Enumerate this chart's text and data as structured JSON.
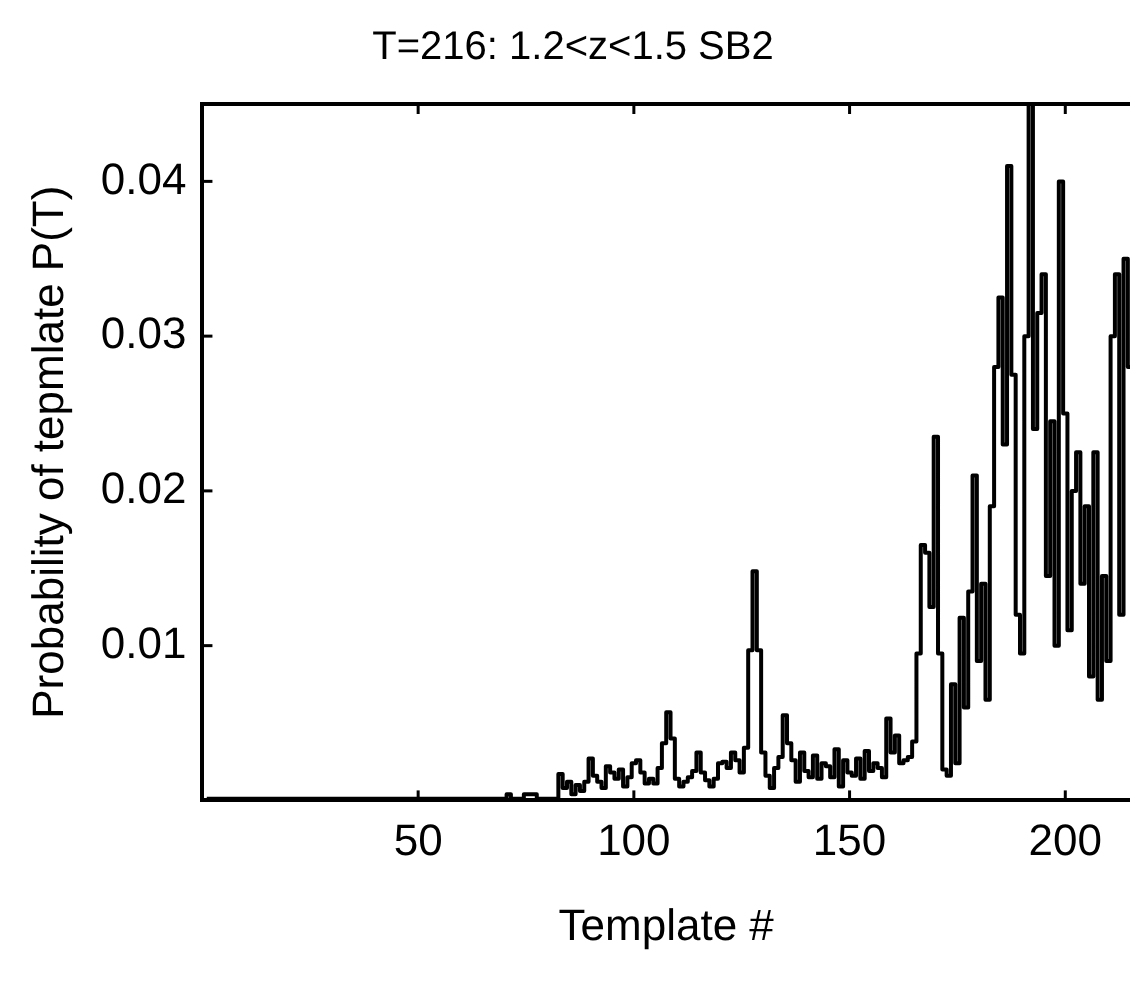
{
  "chart_data": {
    "type": "step",
    "title": "T=216: 1.2<z<1.5 SB2",
    "xlabel": "Template #",
    "ylabel": "Probability of tepmlate P(T)",
    "xlim": [
      0,
      215
    ],
    "xticks": [
      50,
      100,
      150,
      200
    ],
    "ylim": [
      0,
      0.045
    ],
    "yticks": [
      0.01,
      0.02,
      0.03,
      0.04
    ],
    "grid": false,
    "legend": false,
    "marker": "none",
    "series": [
      {
        "color": "#000000",
        "x": [
          1,
          70,
          71,
          72,
          77,
          78,
          82,
          83,
          84,
          85,
          86,
          87,
          88,
          89,
          90,
          91,
          92,
          93,
          94,
          95,
          96,
          97,
          98,
          99,
          100,
          101,
          102,
          103,
          104,
          105,
          106,
          107,
          108,
          109,
          110,
          111,
          112,
          113,
          114,
          115,
          116,
          117,
          118,
          119,
          120,
          121,
          122,
          123,
          124,
          125,
          126,
          127,
          128,
          129,
          130,
          131,
          132,
          133,
          134,
          135,
          136,
          137,
          138,
          139,
          140,
          141,
          142,
          143,
          144,
          145,
          146,
          147,
          148,
          149,
          150,
          151,
          152,
          153,
          154,
          155,
          156,
          157,
          158,
          159,
          160,
          161,
          162,
          163,
          164,
          165,
          166,
          167,
          168,
          169,
          170,
          171,
          172,
          173,
          174,
          175,
          176,
          177,
          178,
          179,
          180,
          181,
          182,
          183,
          184,
          185,
          186,
          187,
          188,
          189,
          190,
          191,
          192,
          193,
          194,
          195,
          196,
          197,
          198,
          199,
          200,
          201,
          202,
          203,
          204,
          205,
          206,
          207,
          208,
          209,
          210,
          211,
          212,
          213,
          214,
          215
        ],
        "values": [
          0.0001,
          0.0001,
          0.0004,
          0.0001,
          0.0004,
          0.0001,
          0.0001,
          0.0017,
          0.0008,
          0.0012,
          0.0004,
          0.001,
          0.0006,
          0.0012,
          0.0027,
          0.0016,
          0.0012,
          0.0008,
          0.0022,
          0.0018,
          0.0014,
          0.002,
          0.0009,
          0.0015,
          0.0024,
          0.0026,
          0.0018,
          0.0011,
          0.0014,
          0.0011,
          0.0021,
          0.0037,
          0.0057,
          0.004,
          0.0014,
          0.0009,
          0.0012,
          0.0015,
          0.0019,
          0.0031,
          0.0018,
          0.0013,
          0.0009,
          0.0014,
          0.0024,
          0.0025,
          0.0021,
          0.0031,
          0.0026,
          0.0018,
          0.0034,
          0.0097,
          0.0148,
          0.0097,
          0.0031,
          0.0016,
          0.0008,
          0.0021,
          0.0028,
          0.0055,
          0.0037,
          0.0026,
          0.0012,
          0.0031,
          0.0019,
          0.0015,
          0.0029,
          0.0014,
          0.0024,
          0.0022,
          0.0015,
          0.0033,
          0.0009,
          0.0026,
          0.0018,
          0.0016,
          0.0027,
          0.0014,
          0.0032,
          0.0019,
          0.0024,
          0.0021,
          0.0015,
          0.0053,
          0.0031,
          0.0042,
          0.0024,
          0.0026,
          0.0028,
          0.0038,
          0.0095,
          0.0165,
          0.016,
          0.0125,
          0.0235,
          0.0095,
          0.002,
          0.0016,
          0.0075,
          0.0024,
          0.0118,
          0.006,
          0.0135,
          0.021,
          0.009,
          0.014,
          0.0065,
          0.019,
          0.028,
          0.0325,
          0.023,
          0.041,
          0.0275,
          0.012,
          0.0095,
          0.03,
          0.045,
          0.024,
          0.0315,
          0.034,
          0.0145,
          0.0245,
          0.01,
          0.04,
          0.025,
          0.011,
          0.02,
          0.0225,
          0.014,
          0.019,
          0.008,
          0.0225,
          0.0065,
          0.0145,
          0.009,
          0.03,
          0.034,
          0.012,
          0.035,
          0.028
        ]
      }
    ]
  }
}
